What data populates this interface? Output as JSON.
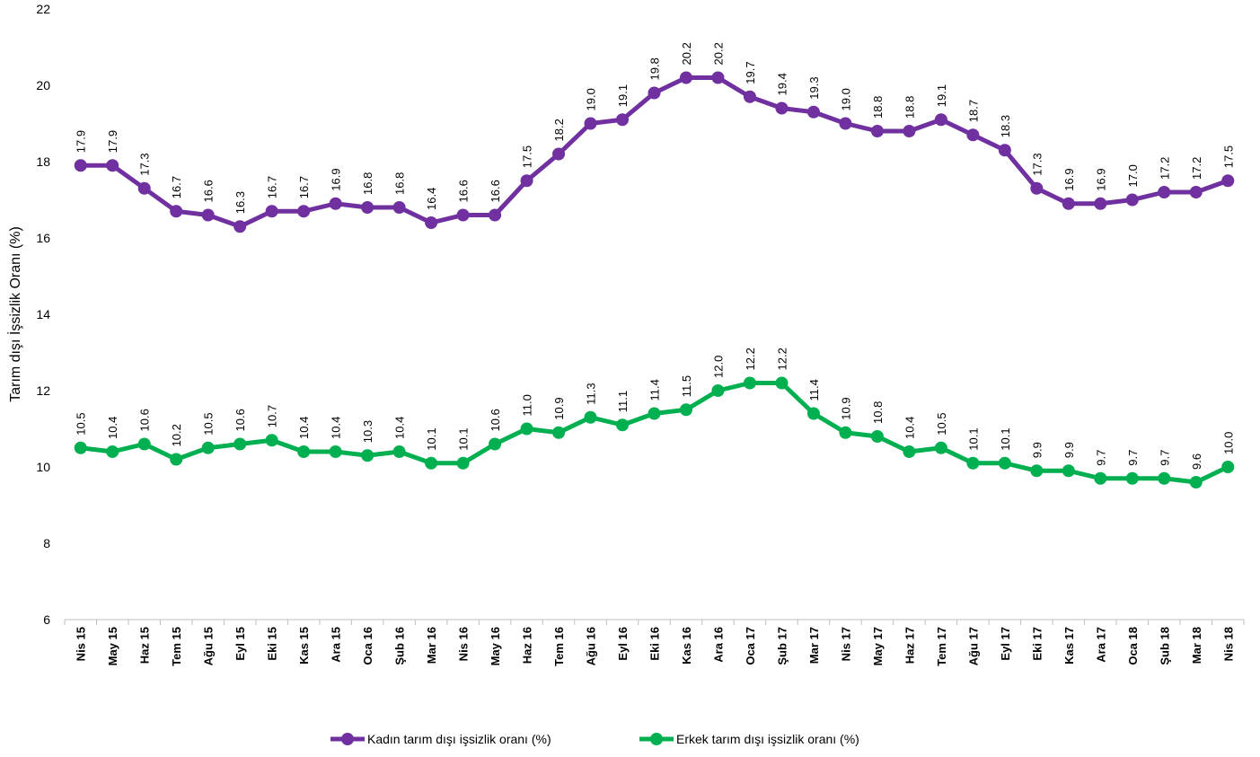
{
  "chart_data": {
    "type": "line",
    "y_label": "Tarım dışı İşsizlik Oranı (%)",
    "categories": [
      "Nis 15",
      "May 15",
      "Haz 15",
      "Tem 15",
      "Ağu 15",
      "Eyl 15",
      "Eki 15",
      "Kas 15",
      "Ara 15",
      "Oca 16",
      "Şub 16",
      "Mar 16",
      "Nis 16",
      "May 16",
      "Haz 16",
      "Tem 16",
      "Ağu 16",
      "Eyl 16",
      "Eki 16",
      "Kas 16",
      "Ara 16",
      "Oca 17",
      "Şub 17",
      "Mar 17",
      "Nis 17",
      "May 17",
      "Haz 17",
      "Tem 17",
      "Ağu 17",
      "Eyl 17",
      "Eki 17",
      "Kas 17",
      "Ara 17",
      "Oca 18",
      "Şub 18",
      "Mar 18",
      "Nis 18"
    ],
    "series": [
      {
        "name": "Kadın tarım dışı işsizlik oranı (%)",
        "color": "#7030a0",
        "values": [
          17.9,
          17.9,
          17.3,
          16.7,
          16.6,
          16.3,
          16.7,
          16.7,
          16.9,
          16.8,
          16.8,
          16.4,
          16.6,
          16.6,
          17.5,
          18.2,
          19.0,
          19.1,
          19.8,
          20.2,
          20.2,
          19.7,
          19.4,
          19.3,
          19.0,
          18.8,
          18.8,
          19.1,
          18.7,
          18.3,
          17.3,
          16.9,
          16.9,
          17.0,
          17.2,
          17.2,
          17.5
        ],
        "value_labels": [
          "17.9",
          "17.9",
          "17.3",
          "16.7",
          "16.6",
          "16.3",
          "16.7",
          "16.7",
          "16.9",
          "16.8",
          "16.8",
          "16.4",
          "16.6",
          "16.6",
          "17.5",
          "18.2",
          "19.0",
          "19.1",
          "19.8",
          "20.2",
          "20.2",
          "19.7",
          "19.4",
          "19.3",
          "19.0",
          "18.8",
          "18.8",
          "19.1",
          "18.7",
          "18.3",
          "17.3",
          "16.9",
          "16.9",
          "17.0",
          "17.2",
          "17.2",
          "17.5"
        ]
      },
      {
        "name": "Erkek tarım dışı işsizlik oranı (%)",
        "color": "#00b050",
        "values": [
          10.5,
          10.4,
          10.6,
          10.2,
          10.5,
          10.6,
          10.7,
          10.4,
          10.4,
          10.3,
          10.4,
          10.1,
          10.1,
          10.6,
          11.0,
          10.9,
          11.3,
          11.1,
          11.4,
          11.5,
          12.0,
          12.2,
          12.2,
          11.4,
          10.9,
          10.8,
          10.4,
          10.5,
          10.1,
          10.1,
          9.9,
          9.9,
          9.7,
          9.7,
          9.7,
          9.6,
          10.0
        ],
        "value_labels": [
          "10.5",
          "10.4",
          "10.6",
          "10.2",
          "10.5",
          "10.6",
          "10.7",
          "10.4",
          "10.4",
          "10.3",
          "10.4",
          "10.1",
          "10.1",
          "10.6",
          "11.0",
          "10.9",
          "11.3",
          "11.1",
          "11.4",
          "11.5",
          "12.0",
          "12.2",
          "12.2",
          "11.4",
          "10.9",
          "10.8",
          "10.4",
          "10.5",
          "10.1",
          "10.1",
          "9.9",
          "9.9",
          "9.7",
          "9.7",
          "9.7",
          "9.6",
          "10.0"
        ]
      }
    ],
    "ylim": [
      6,
      22
    ],
    "yticks": [
      6,
      8,
      10,
      12,
      14,
      16,
      18,
      20,
      22
    ],
    "grid": false,
    "legend": "bottom"
  }
}
